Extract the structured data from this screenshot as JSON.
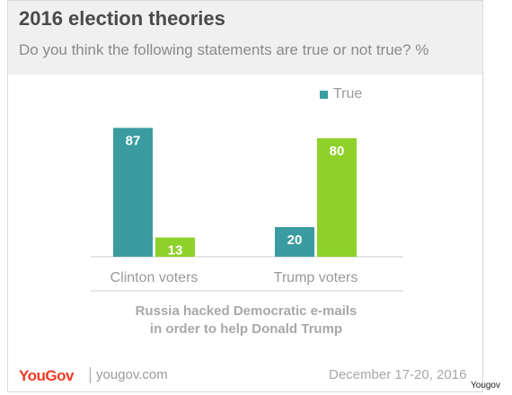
{
  "header": {
    "title": "2016 election theories",
    "subtitle": "Do you think the following statements are true or not true? %"
  },
  "legend": {
    "label": "True"
  },
  "colors": {
    "true": "#3a9ca1",
    "other": "#8ed12a",
    "axis": "#cccccc"
  },
  "chart_data": {
    "type": "bar",
    "categories": [
      "Clinton voters",
      "Trump voters"
    ],
    "series": [
      {
        "name": "True",
        "values": [
          87,
          20
        ]
      },
      {
        "name": "",
        "values": [
          13,
          80
        ]
      }
    ],
    "title": "2016 election theories",
    "xlabel": "Russia hacked Democratic e-mails in order to help Donald Trump",
    "ylabel": "",
    "ylim": [
      0,
      100
    ],
    "grid": false,
    "legend_position": "top-right"
  },
  "question": {
    "line1": "Russia hacked Democratic e-mails",
    "line2": "in order to help Donald Trump"
  },
  "footer": {
    "logo": "YouGov",
    "separator": "|",
    "url": "yougov.com",
    "date": "December 17-20, 2016"
  },
  "source": "Yougov"
}
